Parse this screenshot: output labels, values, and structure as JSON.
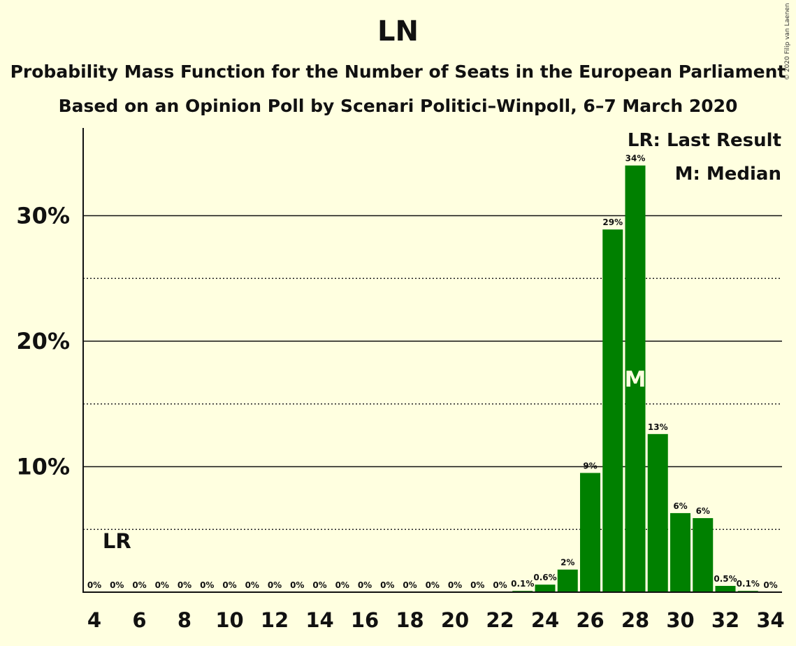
{
  "chart_data": {
    "type": "bar",
    "title": "LN",
    "subtitle": "Probability Mass Function for the Number of Seats in the European Parliament",
    "subtitle2": "Based on an Opinion Poll by Scenari Politici–Winpoll, 6–7 March 2020",
    "copyright": "© 2020 Filip van Laenen",
    "x": [
      4,
      5,
      6,
      7,
      8,
      9,
      10,
      11,
      12,
      13,
      14,
      15,
      16,
      17,
      18,
      19,
      20,
      21,
      22,
      23,
      24,
      25,
      26,
      27,
      28,
      29,
      30,
      31,
      32,
      33,
      34
    ],
    "values": [
      0,
      0,
      0,
      0,
      0,
      0,
      0,
      0,
      0,
      0,
      0,
      0,
      0,
      0,
      0,
      0,
      0,
      0,
      0,
      0.1,
      0.6,
      1.8,
      9.5,
      28.9,
      34,
      12.6,
      6.3,
      5.9,
      0.5,
      0.1,
      0
    ],
    "data_labels": [
      "0%",
      "0%",
      "0%",
      "0%",
      "0%",
      "0%",
      "0%",
      "0%",
      "0%",
      "0%",
      "0%",
      "0%",
      "0%",
      "0%",
      "0%",
      "0%",
      "0%",
      "0%",
      "0%",
      "0.1%",
      "0.6%",
      "2%",
      "9%",
      "29%",
      "34%",
      "13%",
      "6%",
      "6%",
      "0.5%",
      "0.1%",
      "0%"
    ],
    "x_tick_labels": [
      "4",
      "6",
      "8",
      "10",
      "12",
      "14",
      "16",
      "18",
      "20",
      "22",
      "24",
      "26",
      "28",
      "30",
      "32",
      "34"
    ],
    "y_ticks": [
      {
        "value": 10,
        "label": "10%"
      },
      {
        "value": 20,
        "label": "20%"
      },
      {
        "value": 30,
        "label": "30%"
      }
    ],
    "y_minor_gridlines": [
      5,
      15,
      25
    ],
    "ylim": [
      0,
      37
    ],
    "xlim": [
      3.5,
      34.5
    ],
    "bar_color": "#008000",
    "last_result": {
      "x": 5,
      "label": "LR"
    },
    "median": {
      "x": 28,
      "label": "M"
    },
    "legend": {
      "placement": "top-right",
      "items": [
        "LR: Last Result",
        "M: Median"
      ]
    }
  }
}
